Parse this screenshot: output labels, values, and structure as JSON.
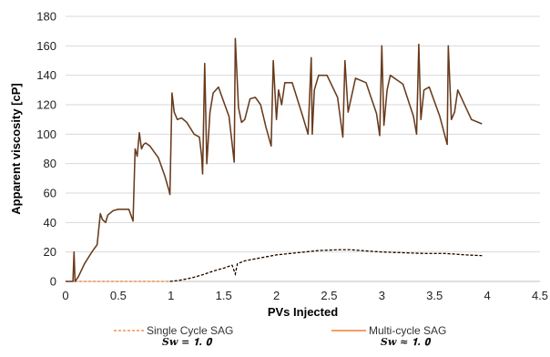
{
  "chart_data": {
    "type": "line",
    "title": "",
    "xlabel": "PVs Injected",
    "ylabel": "Apparent viscosity [cP]",
    "xlim": [
      0,
      4.5
    ],
    "ylim": [
      0,
      180
    ],
    "xticks": [
      "0",
      "0.5",
      "1",
      "1.5",
      "2",
      "2.5",
      "3",
      "3.5",
      "4",
      "4.5"
    ],
    "yticks": [
      "0",
      "20",
      "40",
      "60",
      "80",
      "100",
      "120",
      "140",
      "160",
      "180"
    ],
    "grid": "horizontal",
    "legend_position": "bottom",
    "legend": [
      {
        "label": "Single Cycle SAG",
        "sublabel": "S_w = 1.0",
        "style": "dashed",
        "color": "#ed7d31"
      },
      {
        "label": "Multi-cycle SAG",
        "sublabel": "S_w ≈ 1.0",
        "style": "solid",
        "color": "#ed7d31"
      }
    ],
    "sublabel_display": [
      "𝑺𝒘 = 𝟏. 𝟎",
      "𝑺𝒘 ≈ 𝟏. 𝟎"
    ],
    "series": [
      {
        "name": "Single Cycle SAG",
        "color": "#ed7d31",
        "overlay_color": "#000000",
        "style": "dashed",
        "x": [
          0,
          0.5,
          0.99,
          1.05,
          1.1,
          1.2,
          1.3,
          1.4,
          1.5,
          1.58,
          1.61,
          1.63,
          1.7,
          1.85,
          2.0,
          2.2,
          2.4,
          2.6,
          2.7,
          2.8,
          3.0,
          3.2,
          3.4,
          3.6,
          3.8,
          3.95
        ],
        "y": [
          0,
          0,
          0,
          0.5,
          1,
          2.5,
          4.5,
          7,
          9,
          11,
          5,
          12,
          14,
          16,
          18,
          19.5,
          21,
          21.5,
          21.5,
          21,
          20,
          19.5,
          19,
          19,
          18,
          17.5
        ]
      },
      {
        "name": "Multi-cycle SAG",
        "color": "#ed7d31",
        "overlay_color": "#000000",
        "style": "solid",
        "x": [
          0,
          0.07,
          0.08,
          0.09,
          0.12,
          0.18,
          0.25,
          0.3,
          0.33,
          0.35,
          0.38,
          0.4,
          0.45,
          0.5,
          0.6,
          0.64,
          0.66,
          0.68,
          0.7,
          0.72,
          0.74,
          0.76,
          0.8,
          0.88,
          0.94,
          0.98,
          0.99,
          1.01,
          1.03,
          1.06,
          1.1,
          1.15,
          1.22,
          1.27,
          1.29,
          1.3,
          1.32,
          1.34,
          1.37,
          1.4,
          1.45,
          1.55,
          1.6,
          1.61,
          1.64,
          1.67,
          1.7,
          1.75,
          1.8,
          1.85,
          1.9,
          1.95,
          1.97,
          2.0,
          2.02,
          2.05,
          2.08,
          2.15,
          2.25,
          2.3,
          2.33,
          2.34,
          2.36,
          2.4,
          2.48,
          2.58,
          2.63,
          2.65,
          2.68,
          2.71,
          2.75,
          2.85,
          2.95,
          2.98,
          3.0,
          3.02,
          3.05,
          3.08,
          3.2,
          3.3,
          3.33,
          3.35,
          3.37,
          3.4,
          3.45,
          3.55,
          3.62,
          3.63,
          3.66,
          3.69,
          3.72,
          3.85,
          3.95
        ],
        "y": [
          0,
          0,
          20,
          0,
          3,
          12,
          20,
          25,
          46,
          42,
          40,
          45,
          48,
          49,
          49,
          41,
          90,
          85,
          101,
          90,
          93,
          94,
          92,
          84,
          72,
          62,
          59,
          128,
          115,
          110,
          111,
          108,
          100,
          98,
          85,
          73,
          148,
          80,
          115,
          128,
          132,
          112,
          81,
          165,
          118,
          108,
          110,
          124,
          125,
          120,
          105,
          92,
          150,
          110,
          130,
          120,
          135,
          135,
          112,
          100,
          152,
          100,
          130,
          140,
          140,
          125,
          98,
          150,
          115,
          125,
          138,
          135,
          114,
          99,
          160,
          106,
          130,
          140,
          134,
          112,
          100,
          161,
          110,
          130,
          132,
          112,
          93,
          160,
          110,
          115,
          130,
          110,
          107
        ]
      }
    ]
  }
}
